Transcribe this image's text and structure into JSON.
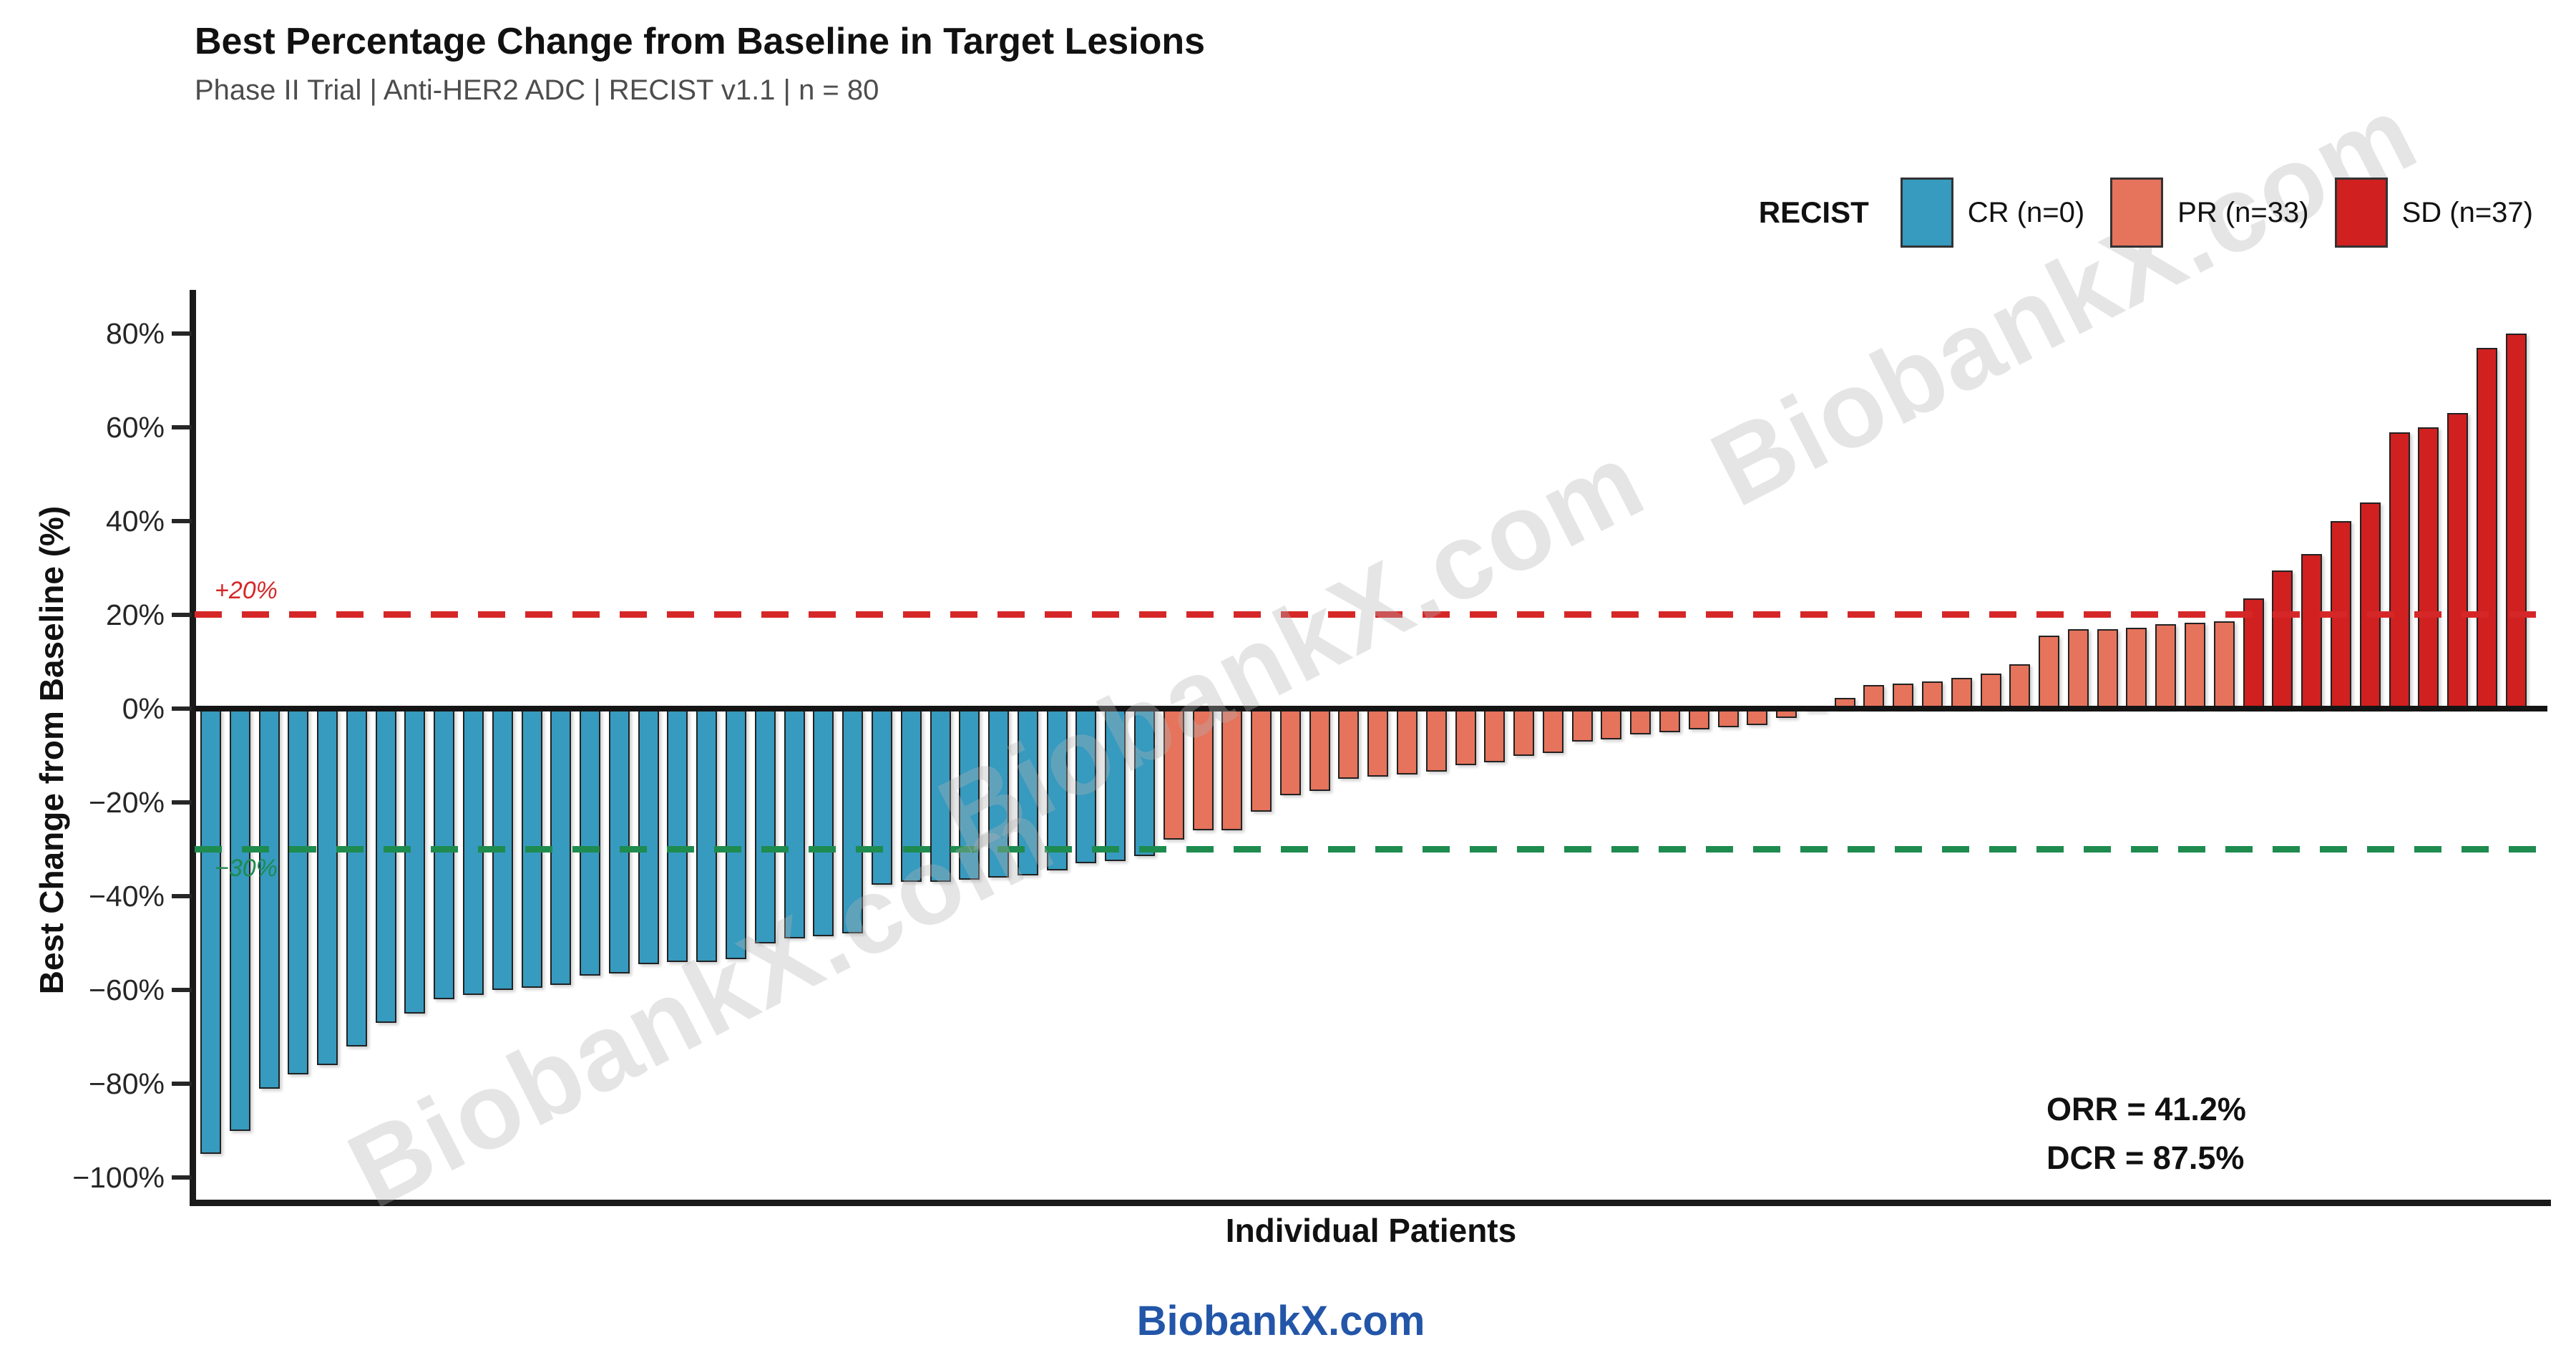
{
  "page": {
    "title": "Best Percentage Change from Baseline in Target Lesions",
    "subtitle": "Phase II Trial | Anti-HER2 ADC | RECIST v1.1 | n = 80",
    "footer": "BiobankX.com",
    "watermark": "BiobankX.com"
  },
  "chart_data": {
    "type": "bar",
    "variant": "waterfall-plot",
    "title": "Best Percentage Change from Baseline in Target Lesions",
    "subtitle": "Phase II Trial | Anti-HER2 ADC | RECIST v1.1 | n = 80",
    "xlabel": "Individual Patients",
    "ylabel": "Best Change from Baseline (%)",
    "n_patients": 80,
    "ylim": [
      -105,
      85
    ],
    "grid": false,
    "yticks": [
      {
        "label": "80%",
        "value": 80
      },
      {
        "label": "60%",
        "value": 60
      },
      {
        "label": "40%",
        "value": 40
      },
      {
        "label": "20%",
        "value": 20
      },
      {
        "label": "0%",
        "value": 0
      },
      {
        "label": "−20%",
        "value": -20
      },
      {
        "label": "−40%",
        "value": -40
      },
      {
        "label": "−60%",
        "value": -60
      },
      {
        "label": "−80%",
        "value": -80
      },
      {
        "label": "−100%",
        "value": -100
      }
    ],
    "reference_lines": [
      {
        "id": "plus20",
        "label": "+20%",
        "value": 20,
        "color": "#D62728"
      },
      {
        "id": "minus30",
        "label": "−30%",
        "value": -30,
        "color": "#1E8B4F"
      }
    ],
    "legend": {
      "title": "RECIST",
      "position": "top-right",
      "entries": [
        {
          "label": "CR (n=0)",
          "color": "#379ABF"
        },
        {
          "label": "PR (n=33)",
          "color": "#E6735C"
        },
        {
          "label": "SD (n=37)",
          "color": "#D02020"
        }
      ]
    },
    "annotations": {
      "orr": "ORR = 41.2%",
      "dcr": "DCR = 87.5%"
    },
    "segments": [
      {
        "name": "deep-response-teal",
        "color": "#379ABF",
        "values": [
          -95,
          -90,
          -81,
          -78,
          -76,
          -72,
          -67,
          -65,
          -62,
          -61,
          -60,
          -59.5,
          -59,
          -57,
          -56.5,
          -54.5,
          -54,
          -54,
          -53.5,
          -50,
          -49,
          -48.5,
          -48,
          -37.5,
          -37,
          -37,
          -36.5,
          -36,
          -35.5,
          -34.5,
          -33,
          -32.5,
          -31.5
        ]
      },
      {
        "name": "intermediate-salmon",
        "color": "#E6735C",
        "values": [
          -28,
          -26,
          -26,
          -22,
          -18.5,
          -17.5,
          -15,
          -14.5,
          -14,
          -13.5,
          -12,
          -11.5,
          -10,
          -9.5,
          -7,
          -6.5,
          -5.5,
          -5,
          -4.5,
          -4,
          -3.5,
          -2,
          -0.5,
          2.3,
          5,
          5.3,
          5.8,
          6.5,
          7.5,
          9.5,
          15.5,
          17,
          17,
          17.3,
          18,
          18.3,
          18.6
        ]
      },
      {
        "name": "growth-red",
        "color": "#D02020",
        "values": [
          23.5,
          29.5,
          33,
          40,
          44,
          59,
          60,
          63,
          77,
          80
        ]
      }
    ]
  }
}
